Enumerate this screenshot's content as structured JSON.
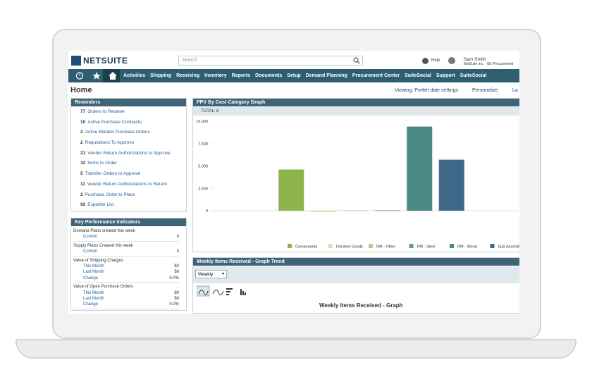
{
  "header": {
    "logo": "NETSUITE",
    "search_placeholder": "Search",
    "help": "Help",
    "user_name": "Sam Smith",
    "user_role": "NetSuite Inc. - 05: Procurement"
  },
  "nav": [
    "Activities",
    "Shipping",
    "Receiving",
    "Inventory",
    "Reports",
    "Documents",
    "Setup",
    "Demand Planning",
    "Procurement Center",
    "SuiteSocial",
    "Support",
    "SuiteSocial"
  ],
  "page": {
    "title": "Home",
    "viewing": "Viewing: Portlet date settings",
    "personalize": "Personalize",
    "layout": "La"
  },
  "reminders": {
    "title": "Reminders",
    "items": [
      {
        "count": 77,
        "label": "Orders to Receive"
      },
      {
        "count": 10,
        "label": "Active Purchase Contracts"
      },
      {
        "count": 2,
        "label": "Active Blanket Purchase Orders"
      },
      {
        "count": 2,
        "label": "Requisitions To Approve"
      },
      {
        "count": 21,
        "label": "Vendor Return Authorizations to Approve"
      },
      {
        "count": 32,
        "label": "Items to Order"
      },
      {
        "count": 5,
        "label": "Transfer Orders to Approve"
      },
      {
        "count": 11,
        "label": "Vendor Return Authorizations to Return"
      },
      {
        "count": 2,
        "label": "Purchase Order to Place"
      },
      {
        "count": 92,
        "label": "Expedite List"
      }
    ]
  },
  "kpi": {
    "title": "Key Performance Indicators",
    "groups": [
      {
        "name": "Demand Plans created this week",
        "rows": [
          {
            "label": "Current",
            "value": "0"
          }
        ]
      },
      {
        "name": "Supply Plans Created this week",
        "rows": [
          {
            "label": "Current",
            "value": "0"
          }
        ]
      },
      {
        "name": "Value of Shipping Charges",
        "rows": [
          {
            "label": "This Month",
            "value": "$0"
          },
          {
            "label": "Last Month",
            "value": "$0"
          },
          {
            "label": "Change",
            "value": "0.0%"
          }
        ]
      },
      {
        "name": "Value of Open Purchase Orders",
        "rows": [
          {
            "label": "This Month",
            "value": "$0"
          },
          {
            "label": "Last Month",
            "value": "$0"
          },
          {
            "label": "Change",
            "value": "0.0%"
          }
        ]
      }
    ]
  },
  "ppv": {
    "title": "PPV By Cost Category Graph",
    "total_label": "TOTAL:",
    "total": 6,
    "chart_data": {
      "type": "bar",
      "categories": [
        "Components",
        "Finished Goods",
        "RM - Other",
        "RM - Steel",
        "RM - Wood",
        "Sub-Assembly"
      ],
      "values": [
        4600,
        -150,
        50,
        50,
        9400,
        5700
      ],
      "colors": [
        "#8db44a",
        "#d6e4a6",
        "#a9d08e",
        "#5f9c8b",
        "#4b8a84",
        "#3e6887"
      ],
      "ylim": [
        0,
        10000
      ],
      "yticks": [
        0,
        {
          "value": 2500,
          "label": "2,500"
        },
        {
          "value": 5000,
          "label": "5,000"
        },
        {
          "value": 7500,
          "label": "7,500"
        },
        {
          "value": 10000,
          "label": "10,000"
        }
      ],
      "legend": "bottom"
    }
  },
  "weekly": {
    "title": "Weekly Items Received - Graph Trend",
    "period": "Weekly",
    "graph_title": "Weekly Items Received - Graph"
  }
}
